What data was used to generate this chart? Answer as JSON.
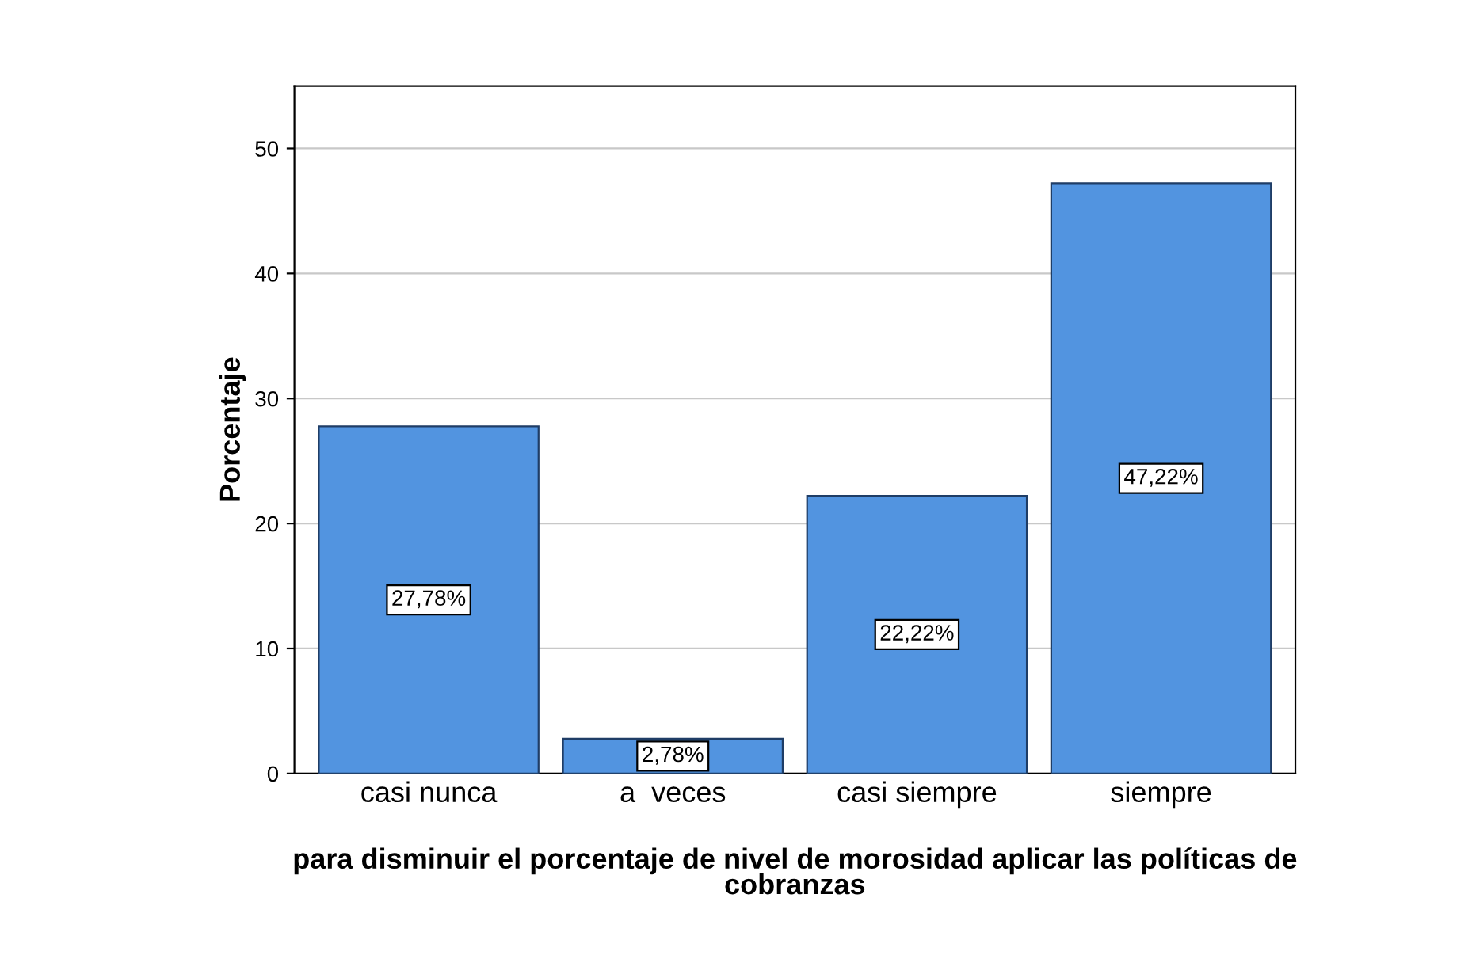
{
  "chart_data": {
    "type": "bar",
    "xlabel": "para disminuir el porcentaje de nivel de morosidad aplicar las políticas de\ncobranzas",
    "ylabel": "Porcentaje",
    "categories": [
      "casi nunca",
      "a  veces",
      "casi siempre",
      "siempre"
    ],
    "values": [
      27.78,
      2.78,
      22.22,
      47.22
    ],
    "value_labels": [
      "27,78%",
      "2,78%",
      "22,22%",
      "47,22%"
    ],
    "color": "#5294e0",
    "ylim": [
      0,
      55
    ],
    "yticks": [
      0,
      10,
      20,
      30,
      40,
      50
    ],
    "grid": "y"
  }
}
